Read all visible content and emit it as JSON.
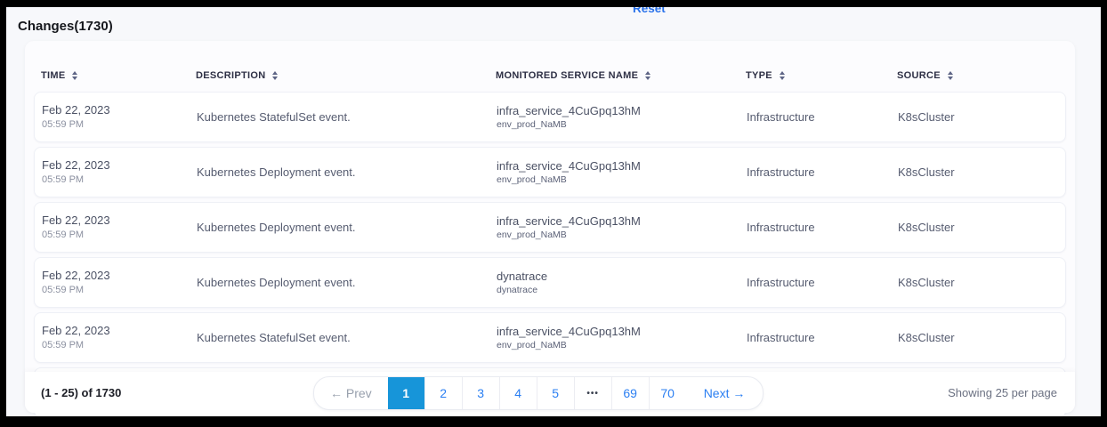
{
  "header": {
    "title": "Changes(1730)",
    "reset_label": "Reset"
  },
  "table": {
    "columns": [
      "TIME",
      "DESCRIPTION",
      "MONITORED SERVICE NAME",
      "TYPE",
      "SOURCE"
    ],
    "rows": [
      {
        "date": "Feb 22, 2023",
        "time": "05:59 PM",
        "description": "Kubernetes StatefulSet event.",
        "service_name": "infra_service_4CuGpq13hM",
        "service_env": "env_prod_NaMB",
        "type": "Infrastructure",
        "source": "K8sCluster"
      },
      {
        "date": "Feb 22, 2023",
        "time": "05:59 PM",
        "description": "Kubernetes Deployment event.",
        "service_name": "infra_service_4CuGpq13hM",
        "service_env": "env_prod_NaMB",
        "type": "Infrastructure",
        "source": "K8sCluster"
      },
      {
        "date": "Feb 22, 2023",
        "time": "05:59 PM",
        "description": "Kubernetes Deployment event.",
        "service_name": "infra_service_4CuGpq13hM",
        "service_env": "env_prod_NaMB",
        "type": "Infrastructure",
        "source": "K8sCluster"
      },
      {
        "date": "Feb 22, 2023",
        "time": "05:59 PM",
        "description": "Kubernetes Deployment event.",
        "service_name": "dynatrace",
        "service_env": "dynatrace",
        "type": "Infrastructure",
        "source": "K8sCluster"
      },
      {
        "date": "Feb 22, 2023",
        "time": "05:59 PM",
        "description": "Kubernetes StatefulSet event.",
        "service_name": "infra_service_4CuGpq13hM",
        "service_env": "env_prod_NaMB",
        "type": "Infrastructure",
        "source": "K8sCluster"
      }
    ]
  },
  "pagination": {
    "range_label": "(1 - 25) of 1730",
    "prev_label": "← Prev",
    "next_label": "Next →",
    "pages": [
      "1",
      "2",
      "3",
      "4",
      "5",
      "•••",
      "69",
      "70"
    ],
    "active_page": "1",
    "per_page_label": "Showing 25 per page"
  },
  "colors": {
    "active_page_bg": "#1795d9",
    "link_blue": "#2b7ff2",
    "page_background": "#f7f8fb"
  }
}
